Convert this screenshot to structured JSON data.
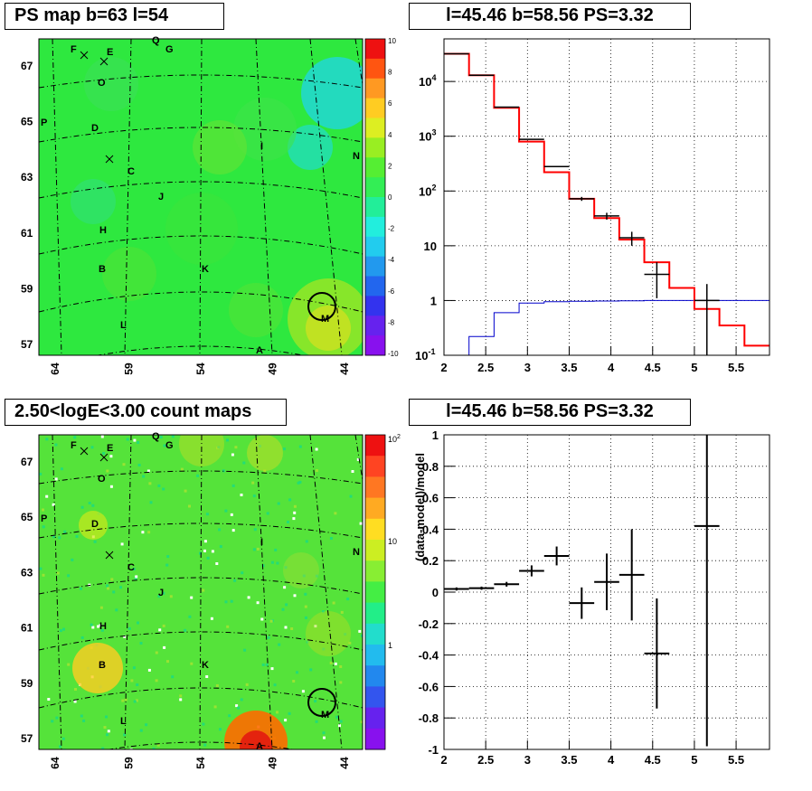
{
  "panels": {
    "top_left_title": "PS map b=63 l=54",
    "top_right_title": "l=45.46 b=58.56 PS=3.32",
    "bottom_left_title": "2.50<logE<3.00 count maps",
    "bottom_right_title": "l=45.46 b=58.56 PS=3.32"
  },
  "colors": {
    "data": "#000000",
    "model": "#ff0000",
    "ratio": "#0000cc",
    "map_green": "#33ee44",
    "circle": "#000000"
  },
  "chart_data": [
    {
      "name": "ps-map",
      "type": "heatmap",
      "title": "PS map b=63 l=54",
      "x_ticks": [
        "64",
        "59",
        "54",
        "49",
        "44"
      ],
      "y_ticks": [
        "57",
        "59",
        "61",
        "63",
        "65",
        "67"
      ],
      "colorbar_ticks": [
        "10",
        "8",
        "6",
        "4",
        "2",
        "0",
        "-2",
        "-4",
        "-6",
        "-8",
        "-10"
      ],
      "source_labels": [
        "F",
        "E",
        "Q",
        "G",
        "O",
        "P",
        "D",
        "I",
        "N",
        "C",
        "J",
        "H",
        "B",
        "K",
        "M",
        "L",
        "A"
      ]
    },
    {
      "name": "spectrum",
      "type": "line",
      "title": "l=45.46 b=58.56 PS=3.32",
      "yscale": "log",
      "xlim": [
        2,
        5.9
      ],
      "ylim": [
        0.1,
        60000
      ],
      "x_ticks": [
        "2",
        "2.5",
        "3",
        "3.5",
        "4",
        "4.5",
        "5",
        "5.5"
      ],
      "y_ticks": [
        "10^-1",
        "1",
        "10",
        "10^2",
        "10^3",
        "10^4"
      ],
      "model_steps": {
        "edges": [
          2,
          2.3,
          2.6,
          2.9,
          3.2,
          3.5,
          3.8,
          4.1,
          4.4,
          4.7,
          5.0,
          5.3,
          5.6,
          5.9
        ],
        "values": [
          32000,
          13000,
          3300,
          800,
          220,
          72,
          32,
          13,
          5,
          1.7,
          0.7,
          0.35,
          0.15
        ]
      },
      "data_points": [
        {
          "x": 2.15,
          "y": 32000,
          "xerr": 0.15
        },
        {
          "x": 2.45,
          "y": 13000,
          "xerr": 0.15
        },
        {
          "x": 2.75,
          "y": 3400,
          "xerr": 0.15
        },
        {
          "x": 3.05,
          "y": 880,
          "xerr": 0.15
        },
        {
          "x": 3.35,
          "y": 280,
          "xerr": 0.15
        },
        {
          "x": 3.65,
          "y": 72,
          "xerr": 0.15,
          "ylo": 66,
          "yhi": 78
        },
        {
          "x": 3.95,
          "y": 35,
          "xerr": 0.15,
          "ylo": 30,
          "yhi": 40
        },
        {
          "x": 4.25,
          "y": 14,
          "xerr": 0.15,
          "ylo": 10,
          "yhi": 18
        },
        {
          "x": 4.55,
          "y": 3,
          "xerr": 0.15,
          "ylo": 1.1,
          "yhi": 5
        },
        {
          "x": 5.15,
          "y": 1,
          "xerr": 0.15,
          "ylo": 0.1,
          "yhi": 2
        }
      ],
      "ratio_steps": {
        "edges": [
          2,
          2.3,
          2.6,
          2.9,
          3.2,
          3.5,
          3.8,
          4.1,
          4.4,
          4.7,
          5.0,
          5.3,
          5.6,
          5.9
        ],
        "values": [
          0.1,
          0.22,
          0.6,
          0.9,
          0.95,
          0.97,
          0.98,
          0.99,
          1,
          1,
          1,
          1,
          1
        ]
      }
    },
    {
      "name": "count-map",
      "type": "heatmap",
      "title": "2.50<logE<3.00 count maps",
      "x_ticks": [
        "64",
        "59",
        "54",
        "49",
        "44"
      ],
      "y_ticks": [
        "57",
        "59",
        "61",
        "63",
        "65",
        "67"
      ],
      "colorbar_ticks": [
        "10^2",
        "10",
        "1"
      ],
      "source_labels": [
        "F",
        "E",
        "Q",
        "G",
        "O",
        "P",
        "D",
        "I",
        "N",
        "C",
        "J",
        "H",
        "B",
        "K",
        "M",
        "L",
        "A"
      ]
    },
    {
      "name": "residual",
      "type": "scatter",
      "title": "l=45.46 b=58.56 PS=3.32",
      "ylabel": "(data-model)/model",
      "xlim": [
        2,
        5.9
      ],
      "ylim": [
        -1,
        1
      ],
      "x_ticks": [
        "2",
        "2.5",
        "3",
        "3.5",
        "4",
        "4.5",
        "5",
        "5.5"
      ],
      "y_ticks": [
        "-1",
        "-0.8",
        "-0.6",
        "-0.4",
        "-0.2",
        "0",
        "0.2",
        "0.4",
        "0.6",
        "0.8",
        "1"
      ],
      "points": [
        {
          "x": 2.15,
          "y": 0.02,
          "xerr": 0.15,
          "yerr": 0.01
        },
        {
          "x": 2.45,
          "y": 0.025,
          "xerr": 0.15,
          "yerr": 0.01
        },
        {
          "x": 2.75,
          "y": 0.05,
          "xerr": 0.15,
          "yerr": 0.015
        },
        {
          "x": 3.05,
          "y": 0.135,
          "xerr": 0.15,
          "yerr": 0.035
        },
        {
          "x": 3.35,
          "y": 0.23,
          "xerr": 0.15,
          "yerr": 0.06
        },
        {
          "x": 3.65,
          "y": -0.07,
          "xerr": 0.15,
          "yerr": 0.1
        },
        {
          "x": 3.95,
          "y": 0.065,
          "xerr": 0.15,
          "yerr": 0.18
        },
        {
          "x": 4.25,
          "y": 0.11,
          "xerr": 0.15,
          "yerr": 0.29
        },
        {
          "x": 4.55,
          "y": -0.39,
          "xerr": 0.15,
          "yerr": 0.35
        },
        {
          "x": 5.15,
          "y": 0.42,
          "xerr": 0.15,
          "yerr": 1.4
        }
      ]
    }
  ]
}
